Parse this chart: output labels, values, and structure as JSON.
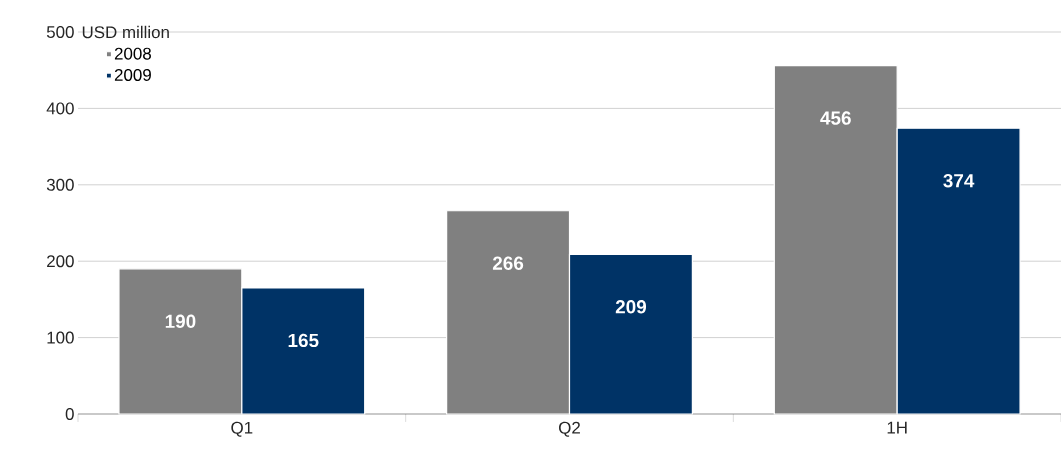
{
  "chart_data": {
    "type": "bar",
    "ylabel": "USD million",
    "categories": [
      "Q1",
      "Q2",
      "1H"
    ],
    "series": [
      {
        "name": "2008",
        "color": "#808080",
        "values": [
          190,
          266,
          456
        ]
      },
      {
        "name": "2009",
        "color": "#003366",
        "values": [
          165,
          209,
          374
        ]
      }
    ],
    "ylim": [
      0,
      500
    ],
    "yticks": [
      0,
      100,
      200,
      300,
      400,
      500
    ],
    "grid": "y",
    "legend": "top left",
    "data_labels": true
  }
}
